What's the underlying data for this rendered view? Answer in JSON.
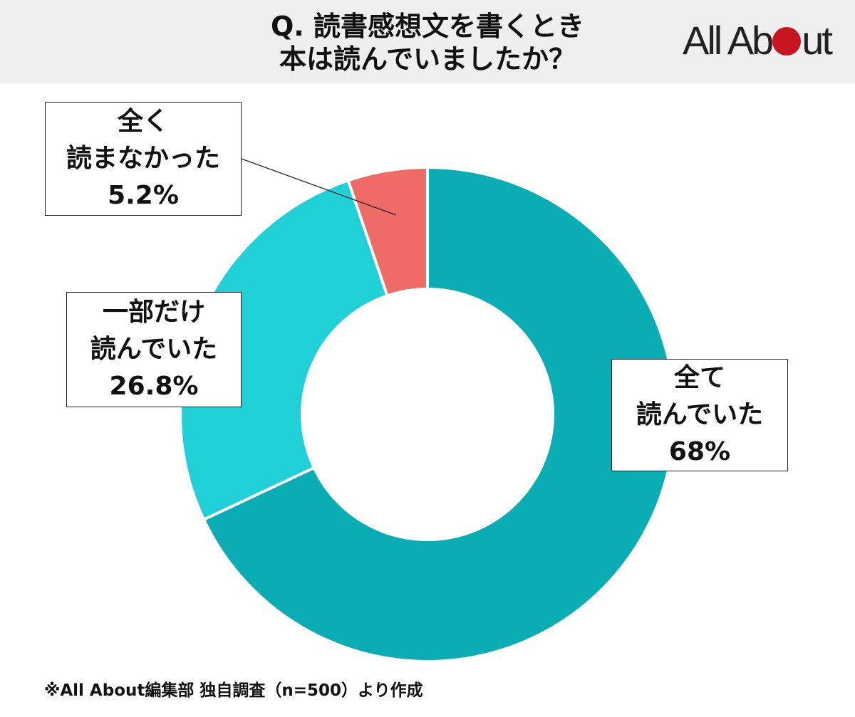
{
  "title": {
    "line1": "Q. 読書感想文を書くとき",
    "line2": "本は読んでいましたか？"
  },
  "logo": {
    "left": "All Ab",
    "right": "ut",
    "dot_color": "#c8141e"
  },
  "chart_data": {
    "type": "pie",
    "donut": true,
    "title": "Q. 読書感想文を書くとき 本は読んでいましたか？",
    "series": [
      {
        "label": "全て読んでいた",
        "value": 68,
        "color": "#0aadb4"
      },
      {
        "label": "一部だけ読んでいた",
        "value": 26.8,
        "color": "#1fd0d6"
      },
      {
        "label": "全く読まなかった",
        "value": 5.2,
        "color": "#ee6b66"
      }
    ]
  },
  "callouts": {
    "all": {
      "line1": "全て",
      "line2": "読んでいた",
      "value": "68%"
    },
    "part": {
      "line1": "一部だけ",
      "line2": "読んでいた",
      "value": "26.8%"
    },
    "none": {
      "line1": "全く",
      "line2": "読まなかった",
      "value": "5.2%"
    }
  },
  "footnote": "※All About編集部 独自調査（n=500）より作成"
}
